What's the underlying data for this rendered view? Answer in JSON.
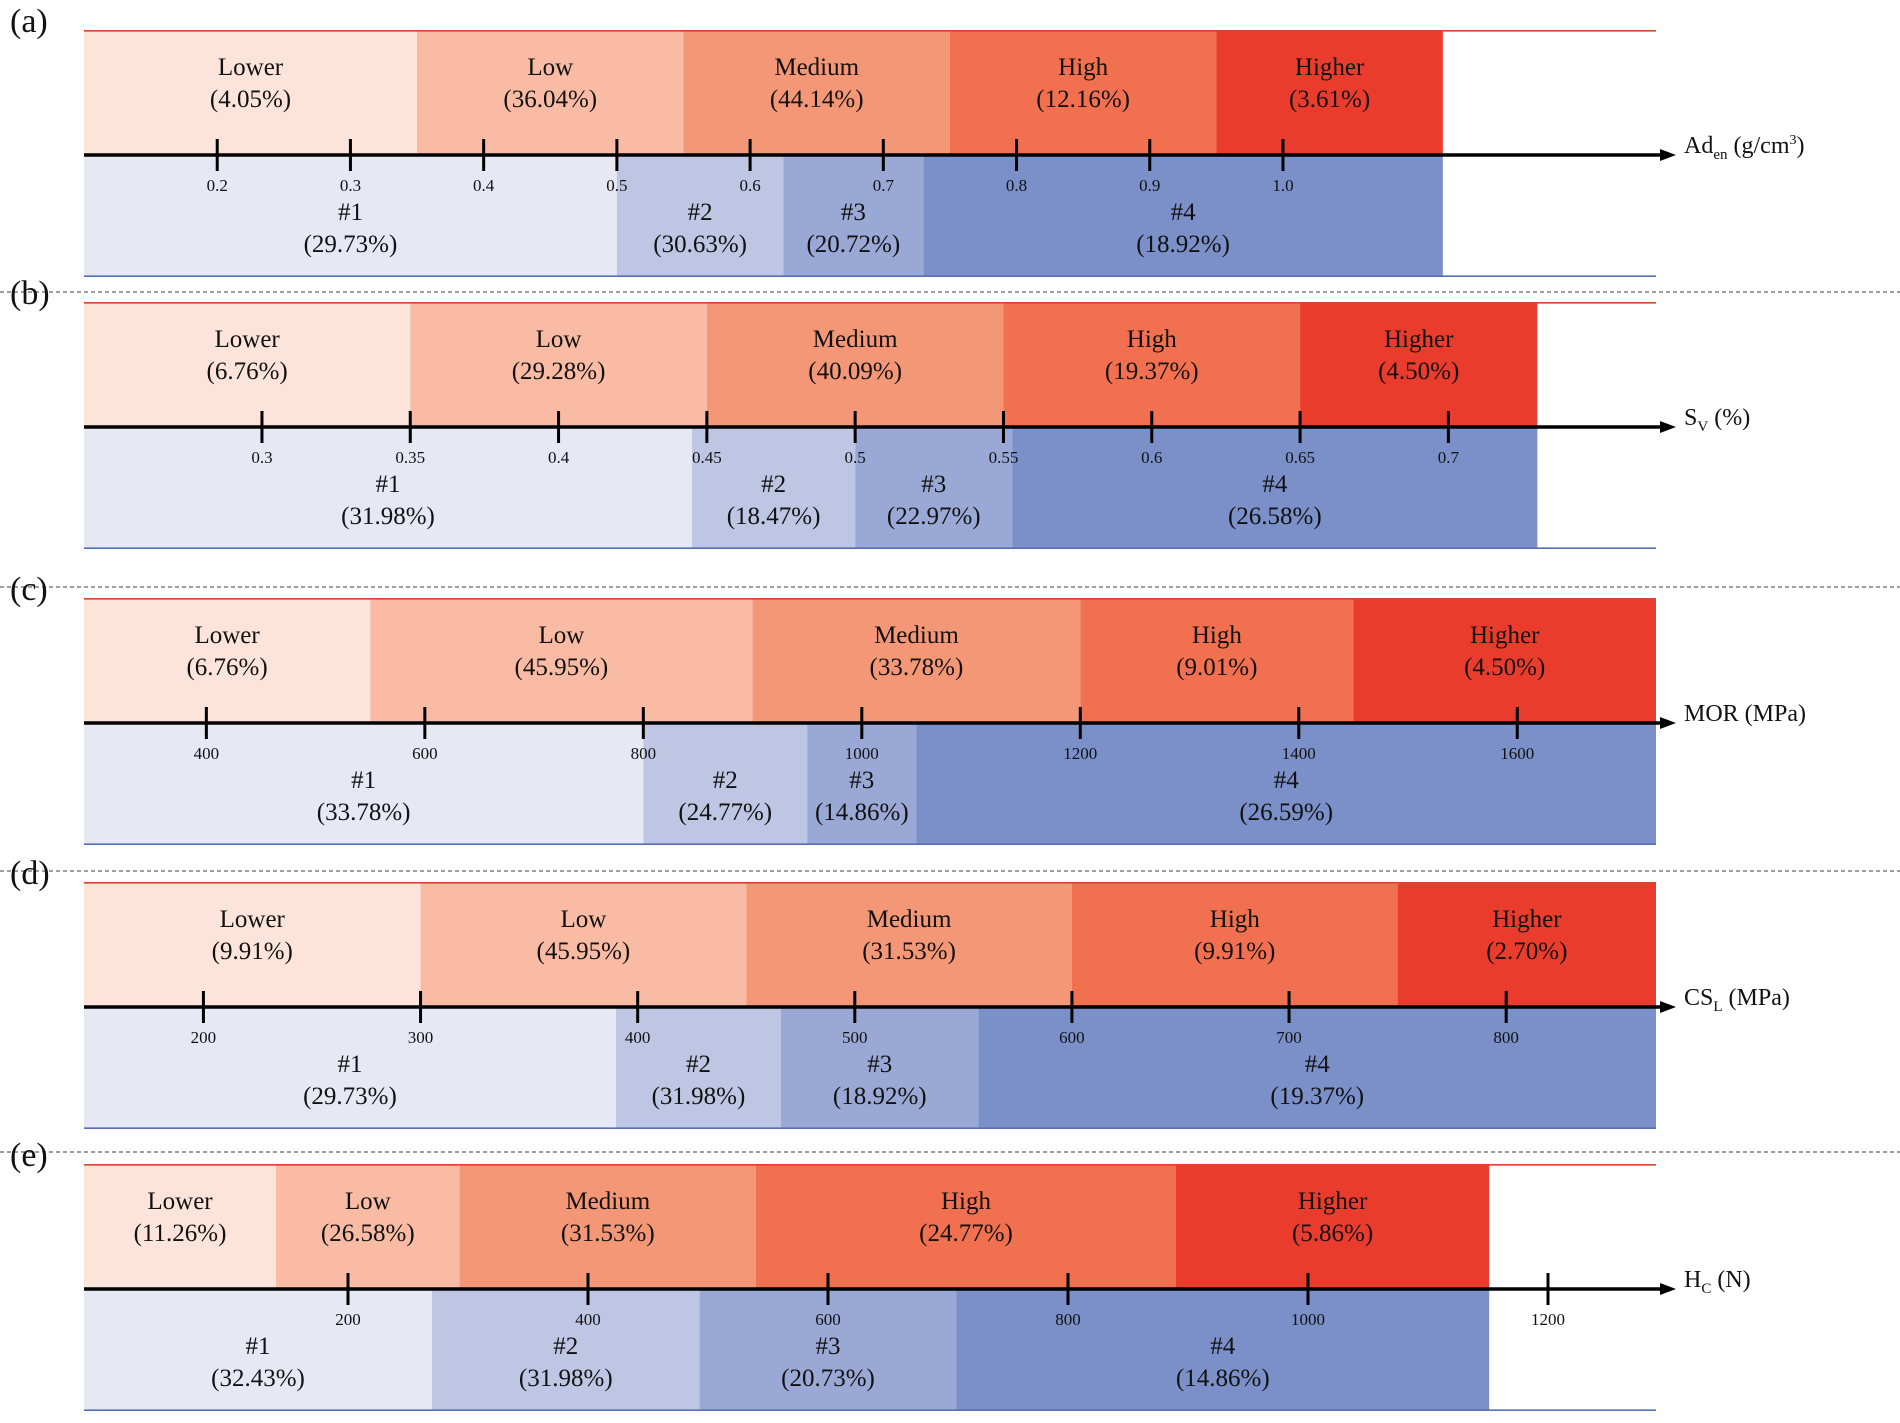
{
  "chart_data": [
    {
      "type": "bar",
      "panel": "(a)",
      "axis_label": {
        "main": "Ad",
        "sub": "en",
        "unit_pre": " (g/cm",
        "sup": "3",
        "unit_post": ")"
      },
      "xlim": [
        0.1,
        1.28
      ],
      "ticks": [
        {
          "v": 0.2,
          "label": "0.2"
        },
        {
          "v": 0.3,
          "label": "0.3"
        },
        {
          "v": 0.4,
          "label": "0.4"
        },
        {
          "v": 0.5,
          "label": "0.5"
        },
        {
          "v": 0.6,
          "label": "0.6"
        },
        {
          "v": 0.7,
          "label": "0.7"
        },
        {
          "v": 0.8,
          "label": "0.8"
        },
        {
          "v": 0.9,
          "label": "0.9"
        },
        {
          "v": 1.0,
          "label": "1.0"
        }
      ],
      "grades": [
        {
          "name": "Lower",
          "pct": "(4.05%)",
          "from": 0.1,
          "to": 0.35,
          "color": "#fde4da"
        },
        {
          "name": "Low",
          "pct": "(36.04%)",
          "from": 0.35,
          "to": 0.55,
          "color": "#f9bba4"
        },
        {
          "name": "Medium",
          "pct": "(44.14%)",
          "from": 0.55,
          "to": 0.75,
          "color": "#f49777"
        },
        {
          "name": "High",
          "pct": "(12.16%)",
          "from": 0.75,
          "to": 0.95,
          "color": "#f0704f"
        },
        {
          "name": "Higher",
          "pct": "(3.61%)",
          "from": 0.95,
          "to": 1.12,
          "color": "#ea3c2c"
        }
      ],
      "classes": [
        {
          "name": "#1",
          "pct": "(29.73%)",
          "from": 0.1,
          "to": 0.5,
          "color": "#e6e8f4"
        },
        {
          "name": "#2",
          "pct": "(30.63%)",
          "from": 0.5,
          "to": 0.625,
          "color": "#bfc6e3"
        },
        {
          "name": "#3",
          "pct": "(20.72%)",
          "from": 0.625,
          "to": 0.73,
          "color": "#9aa8d5"
        },
        {
          "name": "#4",
          "pct": "(18.92%)",
          "from": 0.73,
          "to": 1.12,
          "color": "#7b8fc8"
        }
      ]
    },
    {
      "type": "bar",
      "panel": "(b)",
      "axis_label": {
        "main": "S",
        "sub": "V",
        "unit_pre": " (%)",
        "sup": "",
        "unit_post": ""
      },
      "xlim": [
        0.24,
        0.77
      ],
      "ticks": [
        {
          "v": 0.3,
          "label": "0.3"
        },
        {
          "v": 0.35,
          "label": "0.35"
        },
        {
          "v": 0.4,
          "label": "0.4"
        },
        {
          "v": 0.45,
          "label": "0.45"
        },
        {
          "v": 0.5,
          "label": "0.5"
        },
        {
          "v": 0.55,
          "label": "0.55"
        },
        {
          "v": 0.6,
          "label": "0.6"
        },
        {
          "v": 0.65,
          "label": "0.65"
        },
        {
          "v": 0.7,
          "label": "0.7"
        }
      ],
      "grades": [
        {
          "name": "Lower",
          "pct": "(6.76%)",
          "from": 0.24,
          "to": 0.35,
          "color": "#fde4da"
        },
        {
          "name": "Low",
          "pct": "(29.28%)",
          "from": 0.35,
          "to": 0.45,
          "color": "#f9bba4"
        },
        {
          "name": "Medium",
          "pct": "(40.09%)",
          "from": 0.45,
          "to": 0.55,
          "color": "#f49777"
        },
        {
          "name": "High",
          "pct": "(19.37%)",
          "from": 0.55,
          "to": 0.65,
          "color": "#f0704f"
        },
        {
          "name": "Higher",
          "pct": "(4.50%)",
          "from": 0.65,
          "to": 0.73,
          "color": "#ea3c2c"
        }
      ],
      "classes": [
        {
          "name": "#1",
          "pct": "(31.98%)",
          "from": 0.24,
          "to": 0.445,
          "color": "#e6e8f4"
        },
        {
          "name": "#2",
          "pct": "(18.47%)",
          "from": 0.445,
          "to": 0.5,
          "color": "#bfc6e3"
        },
        {
          "name": "#3",
          "pct": "(22.97%)",
          "from": 0.5,
          "to": 0.553,
          "color": "#9aa8d5"
        },
        {
          "name": "#4",
          "pct": "(26.58%)",
          "from": 0.553,
          "to": 0.73,
          "color": "#7b8fc8"
        }
      ]
    },
    {
      "type": "bar",
      "panel": "(c)",
      "axis_label": {
        "main": "MOR (MPa)",
        "sub": "",
        "unit_pre": "",
        "sup": "",
        "unit_post": ""
      },
      "xlim": [
        288,
        1727
      ],
      "ticks": [
        {
          "v": 400,
          "label": "400"
        },
        {
          "v": 600,
          "label": "600"
        },
        {
          "v": 800,
          "label": "800"
        },
        {
          "v": 1000,
          "label": "1000"
        },
        {
          "v": 1200,
          "label": "1200"
        },
        {
          "v": 1400,
          "label": "1400"
        },
        {
          "v": 1600,
          "label": "1600"
        }
      ],
      "grades": [
        {
          "name": "Lower",
          "pct": "(6.76%)",
          "from": 288,
          "to": 550,
          "color": "#fde4da"
        },
        {
          "name": "Low",
          "pct": "(45.95%)",
          "from": 550,
          "to": 900,
          "color": "#f9bba4"
        },
        {
          "name": "Medium",
          "pct": "(33.78%)",
          "from": 900,
          "to": 1200,
          "color": "#f49777"
        },
        {
          "name": "High",
          "pct": "(9.01%)",
          "from": 1200,
          "to": 1450,
          "color": "#f0704f"
        },
        {
          "name": "Higher",
          "pct": "(4.50%)",
          "from": 1450,
          "to": 1727,
          "color": "#ea3c2c"
        }
      ],
      "classes": [
        {
          "name": "#1",
          "pct": "(33.78%)",
          "from": 288,
          "to": 800,
          "color": "#e6e8f4"
        },
        {
          "name": "#2",
          "pct": "(24.77%)",
          "from": 800,
          "to": 950,
          "color": "#bfc6e3"
        },
        {
          "name": "#3",
          "pct": "(14.86%)",
          "from": 950,
          "to": 1050,
          "color": "#9aa8d5"
        },
        {
          "name": "#4",
          "pct": "(26.59%)",
          "from": 1050,
          "to": 1727,
          "color": "#7b8fc8"
        }
      ]
    },
    {
      "type": "bar",
      "panel": "(d)",
      "axis_label": {
        "main": "CS",
        "sub": "L",
        "unit_pre": " (MPa)",
        "sup": "",
        "unit_post": ""
      },
      "xlim": [
        145,
        869
      ],
      "ticks": [
        {
          "v": 200,
          "label": "200"
        },
        {
          "v": 300,
          "label": "300"
        },
        {
          "v": 400,
          "label": "400"
        },
        {
          "v": 500,
          "label": "500"
        },
        {
          "v": 600,
          "label": "600"
        },
        {
          "v": 700,
          "label": "700"
        },
        {
          "v": 800,
          "label": "800"
        }
      ],
      "grades": [
        {
          "name": "Lower",
          "pct": "(9.91%)",
          "from": 145,
          "to": 300,
          "color": "#fde4da"
        },
        {
          "name": "Low",
          "pct": "(45.95%)",
          "from": 300,
          "to": 450,
          "color": "#f9bba4"
        },
        {
          "name": "Medium",
          "pct": "(31.53%)",
          "from": 450,
          "to": 600,
          "color": "#f49777"
        },
        {
          "name": "High",
          "pct": "(9.91%)",
          "from": 600,
          "to": 750,
          "color": "#f0704f"
        },
        {
          "name": "Higher",
          "pct": "(2.70%)",
          "from": 750,
          "to": 869,
          "color": "#ea3c2c"
        }
      ],
      "classes": [
        {
          "name": "#1",
          "pct": "(29.73%)",
          "from": 145,
          "to": 390,
          "color": "#e6e8f4"
        },
        {
          "name": "#2",
          "pct": "(31.98%)",
          "from": 390,
          "to": 466,
          "color": "#bfc6e3"
        },
        {
          "name": "#3",
          "pct": "(18.92%)",
          "from": 466,
          "to": 557,
          "color": "#9aa8d5"
        },
        {
          "name": "#4",
          "pct": "(19.37%)",
          "from": 557,
          "to": 869,
          "color": "#7b8fc8"
        }
      ]
    },
    {
      "type": "bar",
      "panel": "(e)",
      "axis_label": {
        "main": "H",
        "sub": "C",
        "unit_pre": " (N)",
        "sup": "",
        "unit_post": ""
      },
      "xlim": [
        -20,
        1290
      ],
      "ticks": [
        {
          "v": 200,
          "label": "200"
        },
        {
          "v": 400,
          "label": "400"
        },
        {
          "v": 600,
          "label": "600"
        },
        {
          "v": 800,
          "label": "800"
        },
        {
          "v": 1000,
          "label": "1000"
        },
        {
          "v": 1200,
          "label": "1200"
        }
      ],
      "grades": [
        {
          "name": "Lower",
          "pct": "(11.26%)",
          "from": -20,
          "to": 140,
          "color": "#fde4da"
        },
        {
          "name": "Low",
          "pct": "(26.58%)",
          "from": 140,
          "to": 293,
          "color": "#f9bba4"
        },
        {
          "name": "Medium",
          "pct": "(31.53%)",
          "from": 293,
          "to": 540,
          "color": "#f49777"
        },
        {
          "name": "High",
          "pct": "(24.77%)",
          "from": 540,
          "to": 890,
          "color": "#f0704f"
        },
        {
          "name": "Higher",
          "pct": "(5.86%)",
          "from": 890,
          "to": 1151,
          "color": "#ea3c2c"
        }
      ],
      "classes": [
        {
          "name": "#1",
          "pct": "(32.43%)",
          "from": -20,
          "to": 270,
          "color": "#e6e8f4"
        },
        {
          "name": "#2",
          "pct": "(31.98%)",
          "from": 270,
          "to": 493,
          "color": "#bfc6e3"
        },
        {
          "name": "#3",
          "pct": "(20.73%)",
          "from": 493,
          "to": 707,
          "color": "#9aa8d5"
        },
        {
          "name": "#4",
          "pct": "(14.86%)",
          "from": 707,
          "to": 1151,
          "color": "#7b8fc8"
        }
      ]
    }
  ]
}
